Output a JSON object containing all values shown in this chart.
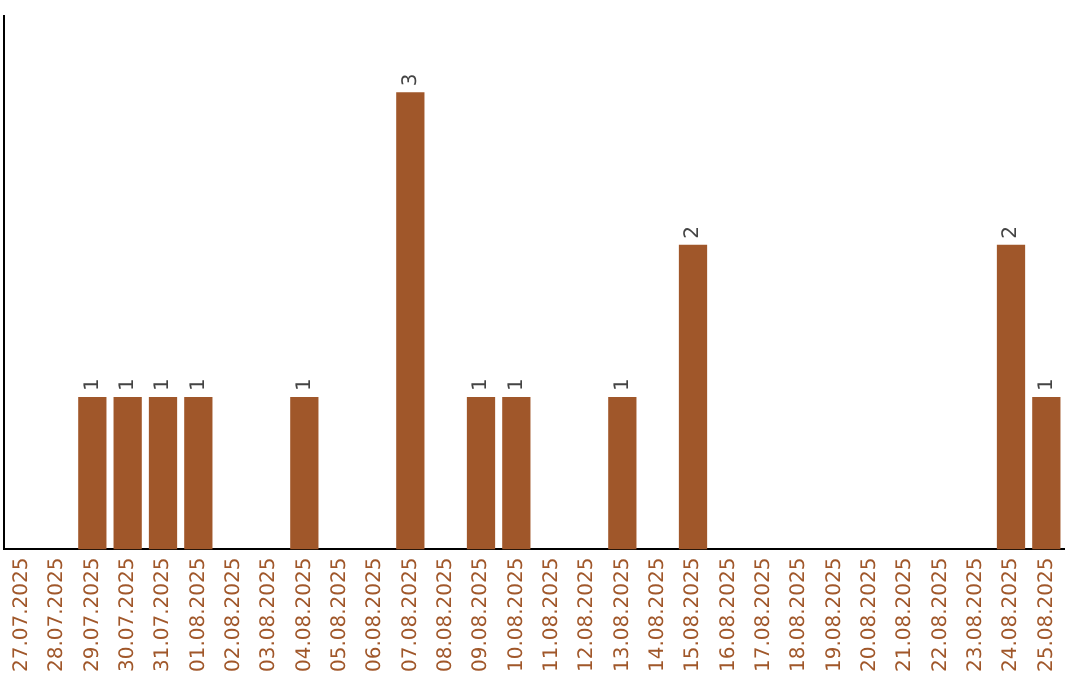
{
  "chart_data": {
    "type": "bar",
    "categories": [
      "27.07.2025",
      "28.07.2025",
      "29.07.2025",
      "30.07.2025",
      "31.07.2025",
      "01.08.2025",
      "02.08.2025",
      "03.08.2025",
      "04.08.2025",
      "05.08.2025",
      "06.08.2025",
      "07.08.2025",
      "08.08.2025",
      "09.08.2025",
      "10.08.2025",
      "11.08.2025",
      "12.08.2025",
      "13.08.2025",
      "14.08.2025",
      "15.08.2025",
      "16.08.2025",
      "17.08.2025",
      "18.08.2025",
      "19.08.2025",
      "20.08.2025",
      "21.08.2025",
      "22.08.2025",
      "23.08.2025",
      "24.08.2025",
      "25.08.2025"
    ],
    "values": [
      0,
      0,
      1,
      1,
      1,
      1,
      0,
      0,
      1,
      0,
      0,
      3,
      0,
      1,
      1,
      0,
      0,
      1,
      0,
      2,
      0,
      0,
      0,
      0,
      0,
      0,
      0,
      0,
      2,
      1
    ],
    "value_labels": [
      null,
      null,
      "1",
      "1",
      "1",
      "1",
      null,
      null,
      "1",
      null,
      null,
      "3",
      null,
      "1",
      "1",
      null,
      null,
      "1",
      null,
      "2",
      null,
      null,
      null,
      null,
      null,
      null,
      null,
      null,
      "2",
      "1"
    ],
    "color": "#a0572a",
    "grid": false,
    "legend": false,
    "tick_labels": "x"
  }
}
